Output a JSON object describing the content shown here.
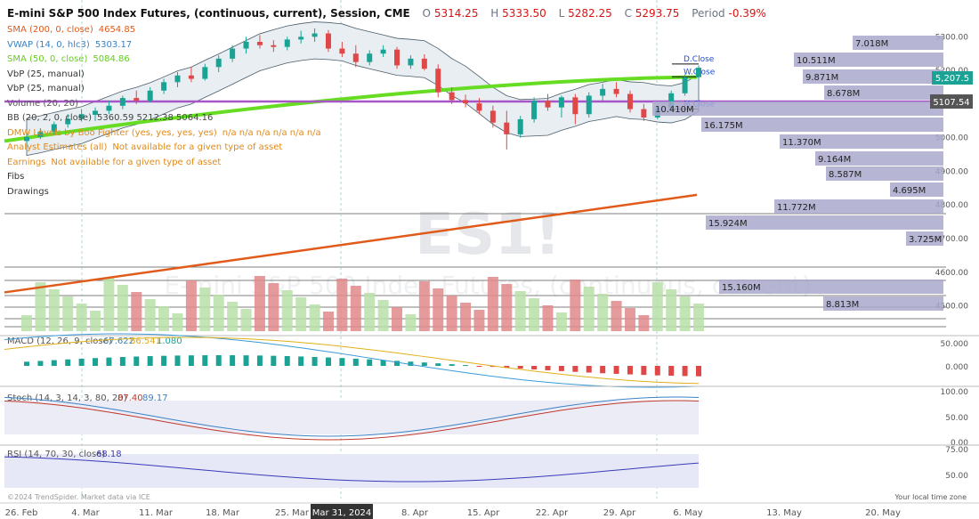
{
  "header": {
    "title": "E-mini S&P 500 Index Futures, (continuous, current), Session, CME",
    "open_key": "O",
    "open": "5314.25",
    "high_key": "H",
    "high": "5333.50",
    "low_key": "L",
    "low": "5282.25",
    "close_key": "C",
    "close": "5293.75",
    "period_key": "Period",
    "period": "-0.39%"
  },
  "indicators": [
    {
      "label": "SMA (200, 0, close)",
      "value": "4654.85",
      "color": "#e05a1a"
    },
    {
      "label": "VWAP (14, 0, hlc3)",
      "value": "5303.17",
      "color": "#3b82c4"
    },
    {
      "label": "SMA (50, 0, close)",
      "value": "5084.86",
      "color": "#66cc22"
    },
    {
      "label": "VbP (25, manual)",
      "value": "",
      "color": "#333"
    },
    {
      "label": "VbP (25, manual)",
      "value": "",
      "color": "#333"
    },
    {
      "label": "Volume (20, 20)",
      "value": "",
      "color": "#555"
    },
    {
      "label": "BB (20, 2, 0, close)",
      "value": "5360.59  5212.38  5064.16",
      "color": "#444"
    },
    {
      "label": "DMW Levels by Boo Fighter (yes, yes, yes, yes)",
      "value": "n/a  n/a  n/a  n/a  n/a  n/a",
      "color": "#e08a1a"
    },
    {
      "label": "Analyst Estimates (all)",
      "value": "Not available for a given type of asset",
      "color": "#e08a1a"
    },
    {
      "label": "Earnings",
      "value": "Not available for a given type of asset",
      "color": "#e08a1a"
    },
    {
      "label": "Fibs",
      "value": "",
      "color": "#333"
    },
    {
      "label": "Drawings",
      "value": "",
      "color": "#333"
    }
  ],
  "watermark": {
    "symbol": "ES1!",
    "name": "E-mini S&P 500 Index Futures, (continuous, current)"
  },
  "footer": {
    "credit": "©2024 TrendSpider. Market data via ICE",
    "timezone": "Your local time zone"
  },
  "x_axis": {
    "labels": [
      "26. Feb",
      "4. Mar",
      "11. Mar",
      "18. Mar",
      "25. Mar",
      "Mar 31, 2024",
      "8. Apr",
      "15. Apr",
      "22. Apr",
      "29. Apr",
      "6. May",
      "13. May",
      "20. May"
    ],
    "highlight": "Mar 31, 2024"
  },
  "price_tags": {
    "last": "5,207.5",
    "last_color": "#1aa394",
    "level": "5107.54",
    "level_color": "#555555"
  },
  "level_labels": [
    "D.Close",
    "W.Close",
    "M.Close"
  ],
  "chart_data": {
    "type": "candlestick",
    "y_axis": {
      "ticks": [
        5300,
        5200,
        5100,
        5000,
        4900,
        4800,
        4700,
        4600,
        4500
      ],
      "ylim": [
        4430,
        5330
      ]
    },
    "candles": [
      {
        "o": 4990,
        "h": 5012,
        "l": 4978,
        "c": 5002
      },
      {
        "o": 5002,
        "h": 5028,
        "l": 4996,
        "c": 5018
      },
      {
        "o": 5018,
        "h": 5048,
        "l": 5010,
        "c": 5040
      },
      {
        "o": 5040,
        "h": 5070,
        "l": 5030,
        "c": 5056
      },
      {
        "o": 5056,
        "h": 5085,
        "l": 5048,
        "c": 5070
      },
      {
        "o": 5068,
        "h": 5090,
        "l": 5050,
        "c": 5080
      },
      {
        "o": 5080,
        "h": 5110,
        "l": 5070,
        "c": 5095
      },
      {
        "o": 5095,
        "h": 5125,
        "l": 5085,
        "c": 5118
      },
      {
        "o": 5118,
        "h": 5140,
        "l": 5100,
        "c": 5110
      },
      {
        "o": 5110,
        "h": 5150,
        "l": 5105,
        "c": 5140
      },
      {
        "o": 5140,
        "h": 5175,
        "l": 5130,
        "c": 5165
      },
      {
        "o": 5165,
        "h": 5195,
        "l": 5150,
        "c": 5185
      },
      {
        "o": 5185,
        "h": 5210,
        "l": 5165,
        "c": 5175
      },
      {
        "o": 5175,
        "h": 5220,
        "l": 5170,
        "c": 5210
      },
      {
        "o": 5210,
        "h": 5245,
        "l": 5195,
        "c": 5235
      },
      {
        "o": 5235,
        "h": 5275,
        "l": 5225,
        "c": 5265
      },
      {
        "o": 5265,
        "h": 5300,
        "l": 5250,
        "c": 5285
      },
      {
        "o": 5285,
        "h": 5305,
        "l": 5265,
        "c": 5275
      },
      {
        "o": 5275,
        "h": 5290,
        "l": 5255,
        "c": 5270
      },
      {
        "o": 5270,
        "h": 5300,
        "l": 5260,
        "c": 5292
      },
      {
        "o": 5292,
        "h": 5318,
        "l": 5280,
        "c": 5300
      },
      {
        "o": 5300,
        "h": 5325,
        "l": 5285,
        "c": 5310
      },
      {
        "o": 5310,
        "h": 5320,
        "l": 5255,
        "c": 5265
      },
      {
        "o": 5265,
        "h": 5285,
        "l": 5240,
        "c": 5250
      },
      {
        "o": 5250,
        "h": 5275,
        "l": 5210,
        "c": 5225
      },
      {
        "o": 5225,
        "h": 5260,
        "l": 5215,
        "c": 5250
      },
      {
        "o": 5250,
        "h": 5275,
        "l": 5240,
        "c": 5262
      },
      {
        "o": 5262,
        "h": 5270,
        "l": 5205,
        "c": 5215
      },
      {
        "o": 5215,
        "h": 5245,
        "l": 5205,
        "c": 5235
      },
      {
        "o": 5235,
        "h": 5248,
        "l": 5200,
        "c": 5205
      },
      {
        "o": 5205,
        "h": 5218,
        "l": 5120,
        "c": 5135
      },
      {
        "o": 5135,
        "h": 5150,
        "l": 5100,
        "c": 5112
      },
      {
        "o": 5112,
        "h": 5128,
        "l": 5090,
        "c": 5102
      },
      {
        "o": 5102,
        "h": 5118,
        "l": 5070,
        "c": 5080
      },
      {
        "o": 5080,
        "h": 5095,
        "l": 5030,
        "c": 5045
      },
      {
        "o": 5045,
        "h": 5080,
        "l": 4965,
        "c": 5010
      },
      {
        "o": 5010,
        "h": 5065,
        "l": 5000,
        "c": 5055
      },
      {
        "o": 5055,
        "h": 5120,
        "l": 5045,
        "c": 5110
      },
      {
        "o": 5110,
        "h": 5130,
        "l": 5080,
        "c": 5090
      },
      {
        "o": 5090,
        "h": 5125,
        "l": 5060,
        "c": 5120
      },
      {
        "o": 5120,
        "h": 5130,
        "l": 5040,
        "c": 5070
      },
      {
        "o": 5070,
        "h": 5135,
        "l": 5060,
        "c": 5125
      },
      {
        "o": 5125,
        "h": 5160,
        "l": 5110,
        "c": 5145
      },
      {
        "o": 5145,
        "h": 5165,
        "l": 5120,
        "c": 5130
      },
      {
        "o": 5130,
        "h": 5140,
        "l": 5075,
        "c": 5085
      },
      {
        "o": 5085,
        "h": 5100,
        "l": 5050,
        "c": 5060
      },
      {
        "o": 5060,
        "h": 5095,
        "l": 5055,
        "c": 5088
      },
      {
        "o": 5088,
        "h": 5140,
        "l": 5080,
        "c": 5132
      },
      {
        "o": 5132,
        "h": 5188,
        "l": 5125,
        "c": 5180
      },
      {
        "o": 5180,
        "h": 5215,
        "l": 5170,
        "c": 5208
      }
    ],
    "series": [
      {
        "name": "SMA (200, 0, close)",
        "from": 4540,
        "to": 4830
      },
      {
        "name": "SMA (50, 0, close)",
        "from": 4990,
        "to": 5180
      }
    ],
    "horizontal_levels": [
      {
        "name": "D.Close",
        "value": 5219
      },
      {
        "name": "W.Close",
        "value": 5181
      },
      {
        "name": "M.Close",
        "value": 5085
      },
      {
        "name": "level",
        "value": 5107.54
      }
    ],
    "volume_by_price": [
      {
        "label": "7.018M"
      },
      {
        "label": "10.511M"
      },
      {
        "label": "9.871M"
      },
      {
        "label": "8.678M"
      },
      {
        "label": "10.410M"
      },
      {
        "label": "16.175M"
      },
      {
        "label": "11.370M"
      },
      {
        "label": "9.164M"
      },
      {
        "label": "8.587M"
      },
      {
        "label": "4.695M"
      },
      {
        "label": "11.772M"
      },
      {
        "label": "15.924M"
      },
      {
        "label": "3.725M"
      },
      {
        "label": "15.160M"
      },
      {
        "label": "8.813M"
      }
    ],
    "macd": {
      "label": "MACD (12, 26, 9, close)",
      "values": [
        "67.622",
        "66.541",
        "1.080"
      ],
      "ticks": [
        "50.000",
        "0.000"
      ]
    },
    "stoch": {
      "label": "Stoch (14, 3, 14, 3, 80, 20)",
      "values": [
        "87.40",
        "89.17"
      ],
      "ticks": [
        "100.00",
        "50.00",
        "0.00"
      ]
    },
    "rsi": {
      "label": "RSI (14, 70, 30, close)",
      "values": [
        "68.18"
      ],
      "ticks": [
        "75.00",
        "50.00"
      ]
    }
  }
}
